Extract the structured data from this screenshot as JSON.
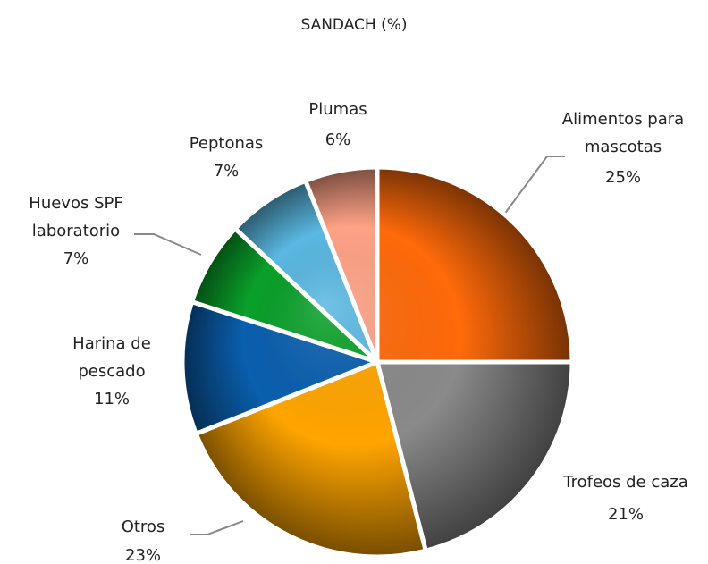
{
  "chart_data": {
    "type": "pie",
    "title": "SANDACH (%)",
    "categories": [
      "Alimentos para mascotas",
      "Trofeos de caza",
      "Otros",
      "Harina de pescado",
      "Huevos SPF laboratorio",
      "Peptonas",
      "Plumas"
    ],
    "values": [
      25,
      21,
      23,
      11,
      7,
      7,
      6
    ],
    "value_labels": [
      "25%",
      "21%",
      "23%",
      "11%",
      "7%",
      "7%",
      "6%"
    ],
    "colors": [
      "#ff6a0a",
      "#8a8a8a",
      "#ffa500",
      "#0a5fae",
      "#0aa02a",
      "#5ab8e2",
      "#ffa286"
    ]
  }
}
